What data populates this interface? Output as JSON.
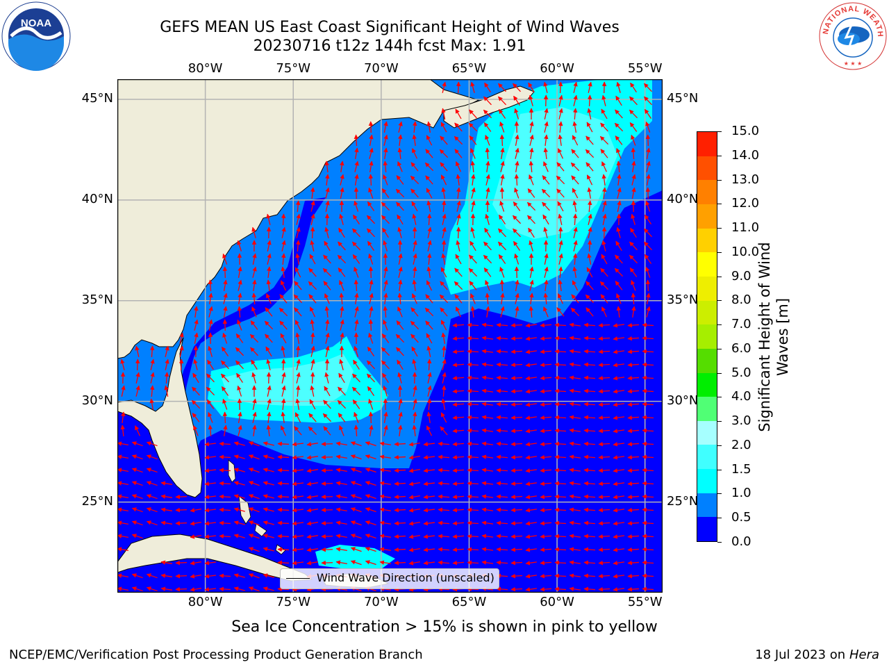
{
  "title": {
    "line1": "GEFS MEAN US East Coast Significant Height of Wind Waves",
    "line2": "20230716 t12z 144h fcst   Max: 1.91"
  },
  "map": {
    "projection": "plate-carree",
    "lon_range": [
      -85,
      -54
    ],
    "lat_range": [
      20.5,
      46
    ],
    "lon_ticks": [
      -80,
      -75,
      -70,
      -65,
      -60,
      -55
    ],
    "lon_tick_labels": [
      "80°W",
      "75°W",
      "70°W",
      "65°W",
      "60°W",
      "55°W"
    ],
    "lat_ticks": [
      25,
      30,
      35,
      40,
      45
    ],
    "lat_tick_labels": [
      "25°N",
      "30°N",
      "35°N",
      "40°N",
      "45°N"
    ],
    "gridlines": true,
    "vectors": "wind wave direction, red arrows"
  },
  "legend": {
    "label": "Wind Wave Direction (unscaled)",
    "placement": "lower-center"
  },
  "colorbar": {
    "label": "Significant Height of Wind Waves [m]",
    "tick_labels": [
      "0.0",
      "0.5",
      "1.0",
      "1.5",
      "2.0",
      "3.0",
      "4.0",
      "5.0",
      "6.0",
      "7.0",
      "8.0",
      "9.0",
      "10.0",
      "11.0",
      "12.0",
      "13.0",
      "14.0",
      "15.0"
    ],
    "colors": [
      "#0000ff",
      "#0080ff",
      "#00ffff",
      "#40ffff",
      "#a6ffff",
      "#50ff75",
      "#00ee00",
      "#55dd00",
      "#a6ee00",
      "#ccee00",
      "#eeee00",
      "#ffff00",
      "#ffd000",
      "#ffa000",
      "#ff8000",
      "#ff5000",
      "#ff2000",
      "#ff0000"
    ]
  },
  "colors": {
    "land": "#efedda",
    "band_0": "#0000ff",
    "band_0_5": "#0080ff",
    "band_1": "#00ffff",
    "band_1_5": "#4dffff",
    "arrows": "#ff0000",
    "gridlines": "#b3b3b3"
  },
  "subtitle": "Sea Ice Concentration > 15% is shown in pink to yellow",
  "footer": {
    "credit": "NCEP/EMC/Verification Post Processing Product Generation Branch",
    "date_prefix": "18 Jul 2023 on ",
    "machine": "Hera"
  },
  "logos": {
    "left": "NOAA",
    "right": "NATIONAL WEATHER SERVICE"
  }
}
